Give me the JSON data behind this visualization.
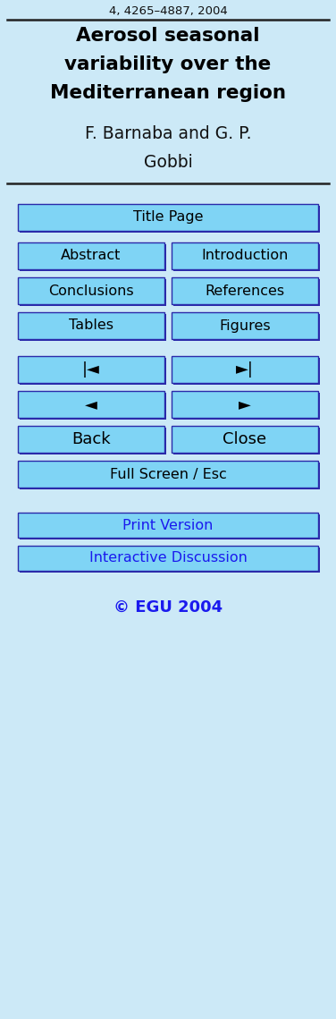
{
  "background_color": "#cce9f7",
  "top_text": "4, 4265–4887, 2004",
  "title_line1": "Aerosol seasonal",
  "title_line2": "variability over the",
  "title_line3": "Mediterranean region",
  "author_line1": "F. Barnaba and G. P.",
  "author_line2": "Gobbi",
  "button_bg": "#7fd4f5",
  "button_border": "#2a2aaa",
  "button_text_color": "#000000",
  "pair_buttons": [
    [
      "Abstract",
      "Introduction"
    ],
    [
      "Conclusions",
      "References"
    ],
    [
      "Tables",
      "Figures"
    ],
    [
      "|◄",
      "►|"
    ],
    [
      "◄",
      "►"
    ],
    [
      "Back",
      "Close"
    ]
  ],
  "link_buttons": [
    "Print Version",
    "Interactive Discussion"
  ],
  "link_color": "#1a1aee",
  "copyright_text": "© EGU 2004",
  "copyright_color": "#1a1aee",
  "figsize": [
    3.76,
    11.39
  ],
  "dpi": 100
}
